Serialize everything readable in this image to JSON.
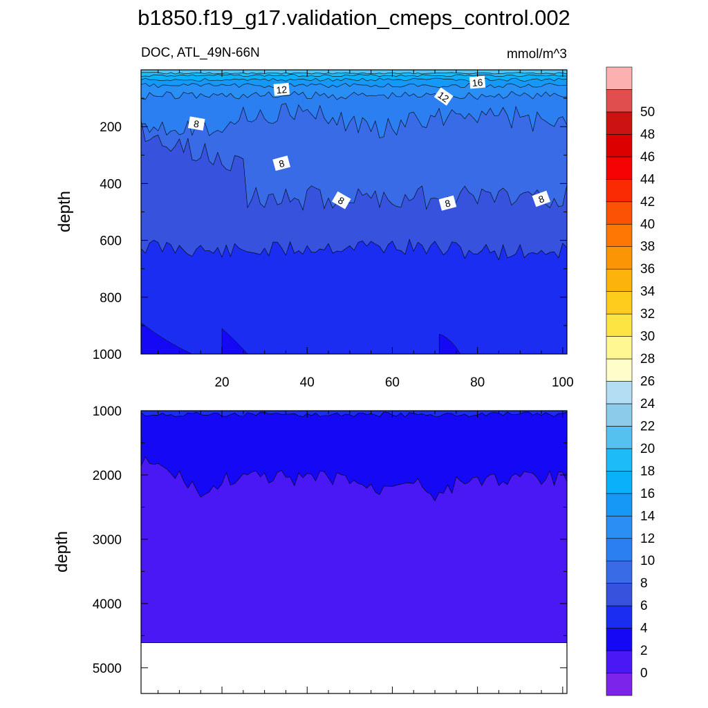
{
  "chart_data": {
    "type": "contour",
    "title": "b1850.f19_g17.validation_cmeps_control.002",
    "variable_label": "DOC, ATL_49N-66N",
    "units": "mmol/m^3",
    "x_ticks": [
      "20",
      "40",
      "60",
      "80",
      "100"
    ],
    "x_range": [
      1,
      101
    ],
    "panels": [
      {
        "name": "upper",
        "ylabel": "depth",
        "ylim": [
          0,
          1000
        ],
        "y_ticks": [
          "200",
          "400",
          "600",
          "800",
          "1000"
        ],
        "contour_labels": [
          "16",
          "12",
          "12",
          "8",
          "8",
          "8",
          "8",
          "8"
        ]
      },
      {
        "name": "lower",
        "ylabel": "depth",
        "ylim": [
          1000,
          5400
        ],
        "y_ticks": [
          "1000",
          "2000",
          "3000",
          "4000",
          "5000"
        ],
        "valid_bottom_depth": 4610
      }
    ],
    "colorbar": {
      "labels": [
        "0",
        "2",
        "4",
        "6",
        "8",
        "10",
        "12",
        "14",
        "16",
        "18",
        "20",
        "22",
        "24",
        "26",
        "28",
        "30",
        "32",
        "34",
        "36",
        "38",
        "40",
        "42",
        "44",
        "46",
        "48",
        "50"
      ],
      "colors": [
        "#7d24ea",
        "#4a17f5",
        "#1508f5",
        "#1a2df0",
        "#3753de",
        "#3a6be6",
        "#2b7ff0",
        "#2a8ff5",
        "#1699f6",
        "#0bb0fb",
        "#1dbbf7",
        "#55c1ef",
        "#8ccbea",
        "#b3ddf2",
        "#fffecb",
        "#fff791",
        "#fde442",
        "#fdcc1d",
        "#fcb30b",
        "#fc9505",
        "#fc7703",
        "#fc5203",
        "#fa2a03",
        "#f50202",
        "#dd0000",
        "#cd1212",
        "#e04e4e",
        "#fdb0b0"
      ]
    }
  }
}
